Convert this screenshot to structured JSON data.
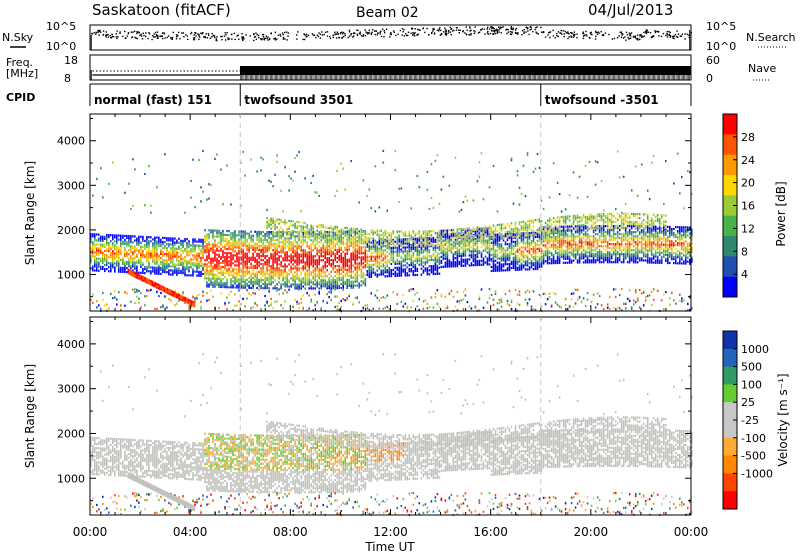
{
  "header": {
    "station": "Saskatoon (fitACF)",
    "beam": "Beam 02",
    "date": "04/Jul/2013"
  },
  "strips": {
    "nsky_label": "N.Sky",
    "nsky_ticks": [
      "10^5",
      "10^0"
    ],
    "nsearch_label": "N.Search",
    "nsearch_ticks": [
      "10^5",
      "10^0"
    ],
    "freq_label": "Freq.",
    "freq_unit": "[MHz]",
    "freq_ticks": [
      "18",
      "8"
    ],
    "nave_label": "Nave",
    "nave_ticks": [
      "60",
      "0"
    ],
    "cpid_label": "CPID",
    "cpid_segments": [
      {
        "label": "normal (fast) 151",
        "start_hour": 0,
        "end_hour": 6
      },
      {
        "label": "twofsound 3501",
        "start_hour": 6,
        "end_hour": 18
      },
      {
        "label": "twofsound -3501",
        "start_hour": 18,
        "end_hour": 24
      }
    ]
  },
  "colors": {
    "power": [
      "#0000ff",
      "#1f4fb0",
      "#2e8a6e",
      "#4ab04a",
      "#9acd32",
      "#ffd700",
      "#ff9900",
      "#ff5500",
      "#ff0000"
    ],
    "velocity": [
      "#ff0000",
      "#ff4400",
      "#ff8800",
      "#ffaa33",
      "#c8c8c8",
      "#c8c8c8",
      "#66cc33",
      "#339966",
      "#2266bb",
      "#1133aa"
    ],
    "ground_scatter": "#c0c0bc",
    "guide_line": "#c8c8c8"
  },
  "chart_data": [
    {
      "type": "heatmap",
      "ylabel": "Slant Range [km]",
      "xlim": [
        0,
        24
      ],
      "ylim": [
        180,
        4600
      ],
      "yticks": [
        "1000",
        "2000",
        "3000",
        "4000"
      ],
      "colorbar_label": "Power [dB]",
      "colorbar_ticks": [
        "4",
        "8",
        "12",
        "16",
        "20",
        "24",
        "28"
      ],
      "colorbar_range": [
        0,
        32
      ]
    },
    {
      "type": "heatmap",
      "ylabel": "Slant Range [km]",
      "xlabel": "Time UT",
      "xlim": [
        0,
        24
      ],
      "ylim": [
        180,
        4600
      ],
      "yticks": [
        "1000",
        "2000",
        "3000",
        "4000"
      ],
      "xticks": [
        "00:00",
        "04:00",
        "08:00",
        "12:00",
        "16:00",
        "20:00",
        "00:00"
      ],
      "colorbar_label": "Velocity [m s⁻¹]",
      "colorbar_ticks": [
        "1000",
        "500",
        "100",
        "25",
        "-25",
        "-100",
        "-500",
        "-1000"
      ]
    }
  ]
}
